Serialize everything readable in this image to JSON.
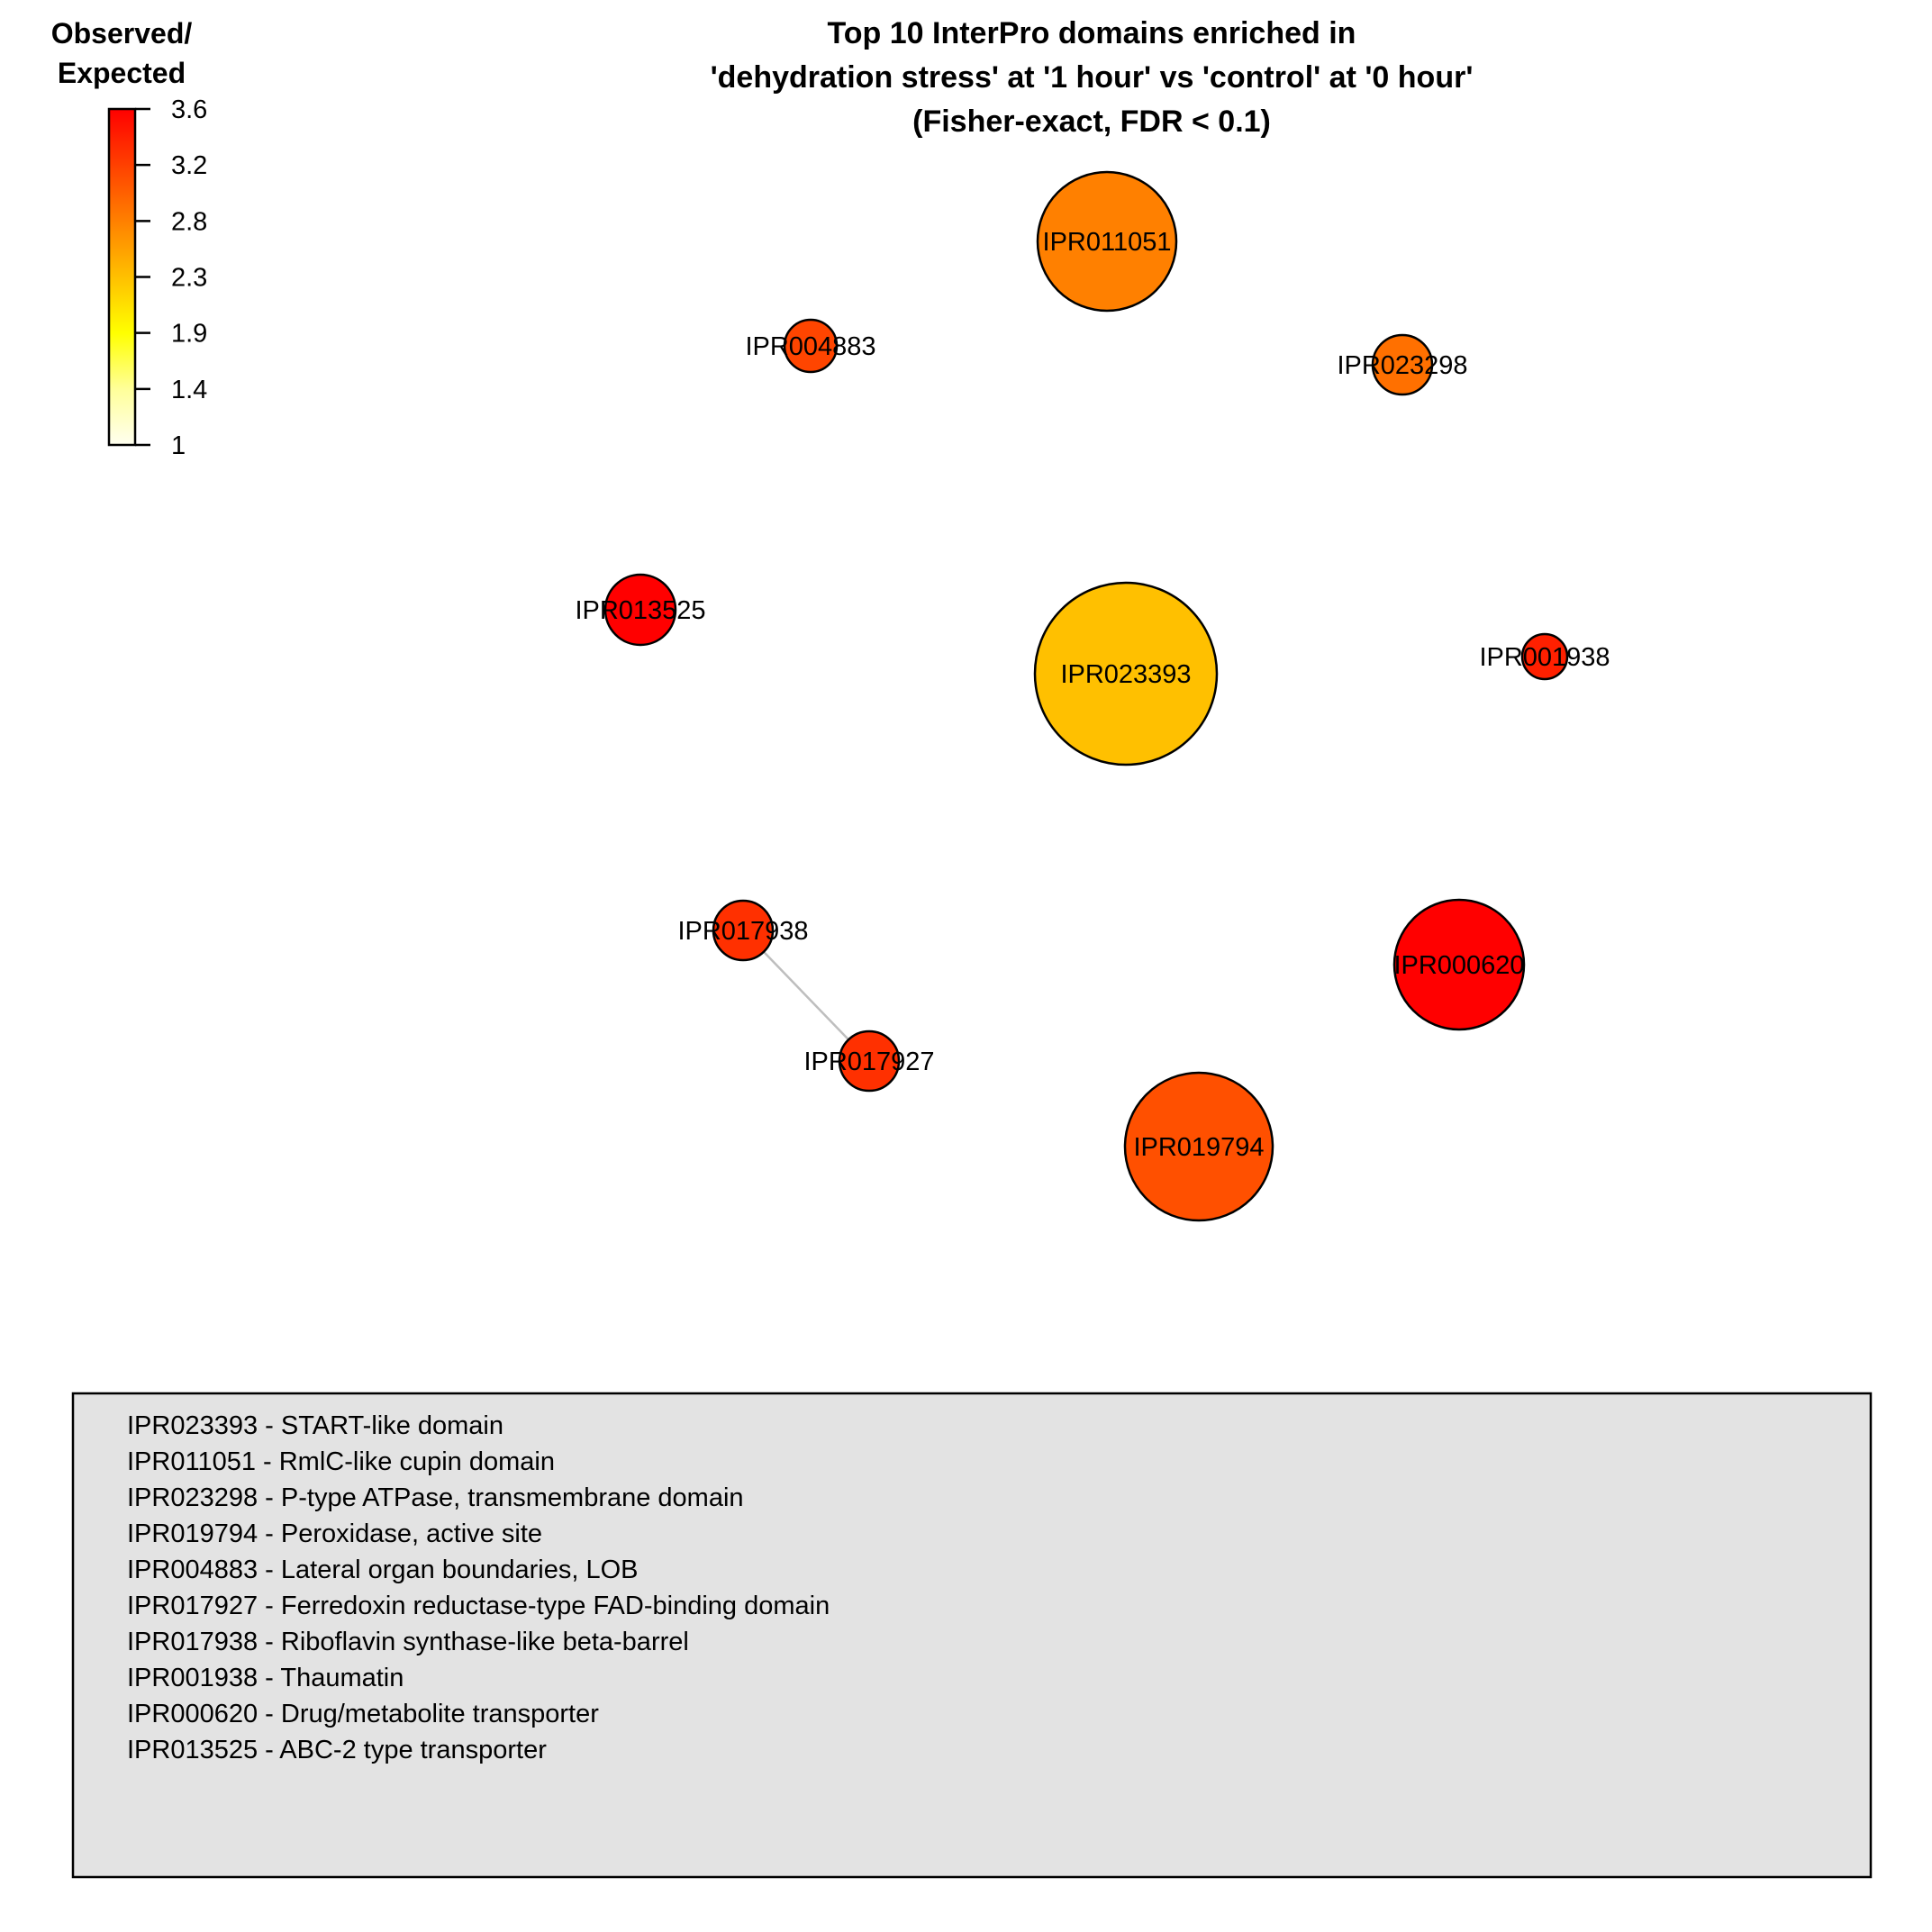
{
  "chart_data": {
    "type": "network-bubble",
    "title_lines": [
      "Top 10 InterPro domains enriched in",
      "'dehydration stress' at '1 hour' vs 'control' at '0 hour'",
      "(Fisher-exact, FDR < 0.1)"
    ],
    "colorbar": {
      "title_lines": [
        "Observed/",
        "Expected"
      ],
      "ticks": [
        "3.6",
        "3.2",
        "2.8",
        "2.3",
        "1.9",
        "1.4",
        "1"
      ],
      "min": 1,
      "max": 3.6,
      "colors": [
        "#FFFFF0",
        "#FFFF99",
        "#FFFF00",
        "#FFC000",
        "#FF8000",
        "#FF4000",
        "#FF0000"
      ]
    },
    "nodes": [
      {
        "id": "IPR023393",
        "value": 2.6,
        "color": "#FFC000"
      },
      {
        "id": "IPR011051",
        "value": 3.1,
        "color": "#FF8000"
      },
      {
        "id": "IPR023298",
        "value": 3.1,
        "color": "#FF7000"
      },
      {
        "id": "IPR019794",
        "value": 3.3,
        "color": "#FF5000"
      },
      {
        "id": "IPR004883",
        "value": 3.4,
        "color": "#FF4500"
      },
      {
        "id": "IPR017927",
        "value": 3.5,
        "color": "#FF3000"
      },
      {
        "id": "IPR017938",
        "value": 3.5,
        "color": "#FF3000"
      },
      {
        "id": "IPR001938",
        "value": 3.5,
        "color": "#FF2000"
      },
      {
        "id": "IPR000620",
        "value": 3.6,
        "color": "#FF0000"
      },
      {
        "id": "IPR013525",
        "value": 3.6,
        "color": "#FF0000"
      }
    ],
    "edges": [
      {
        "source": "IPR017938",
        "target": "IPR017927"
      }
    ],
    "legend": [
      "IPR023393 - START-like domain",
      "IPR011051 - RmlC-like cupin domain",
      "IPR023298 - P-type ATPase,  transmembrane domain",
      "IPR019794 - Peroxidase, active site",
      "IPR004883 - Lateral organ boundaries, LOB",
      "IPR017927 - Ferredoxin reductase-type FAD-binding domain",
      "IPR017938 - Riboflavin synthase-like beta-barrel",
      "IPR001938 - Thaumatin",
      "IPR000620 - Drug/metabolite transporter",
      "IPR013525 - ABC-2 type transporter"
    ]
  }
}
